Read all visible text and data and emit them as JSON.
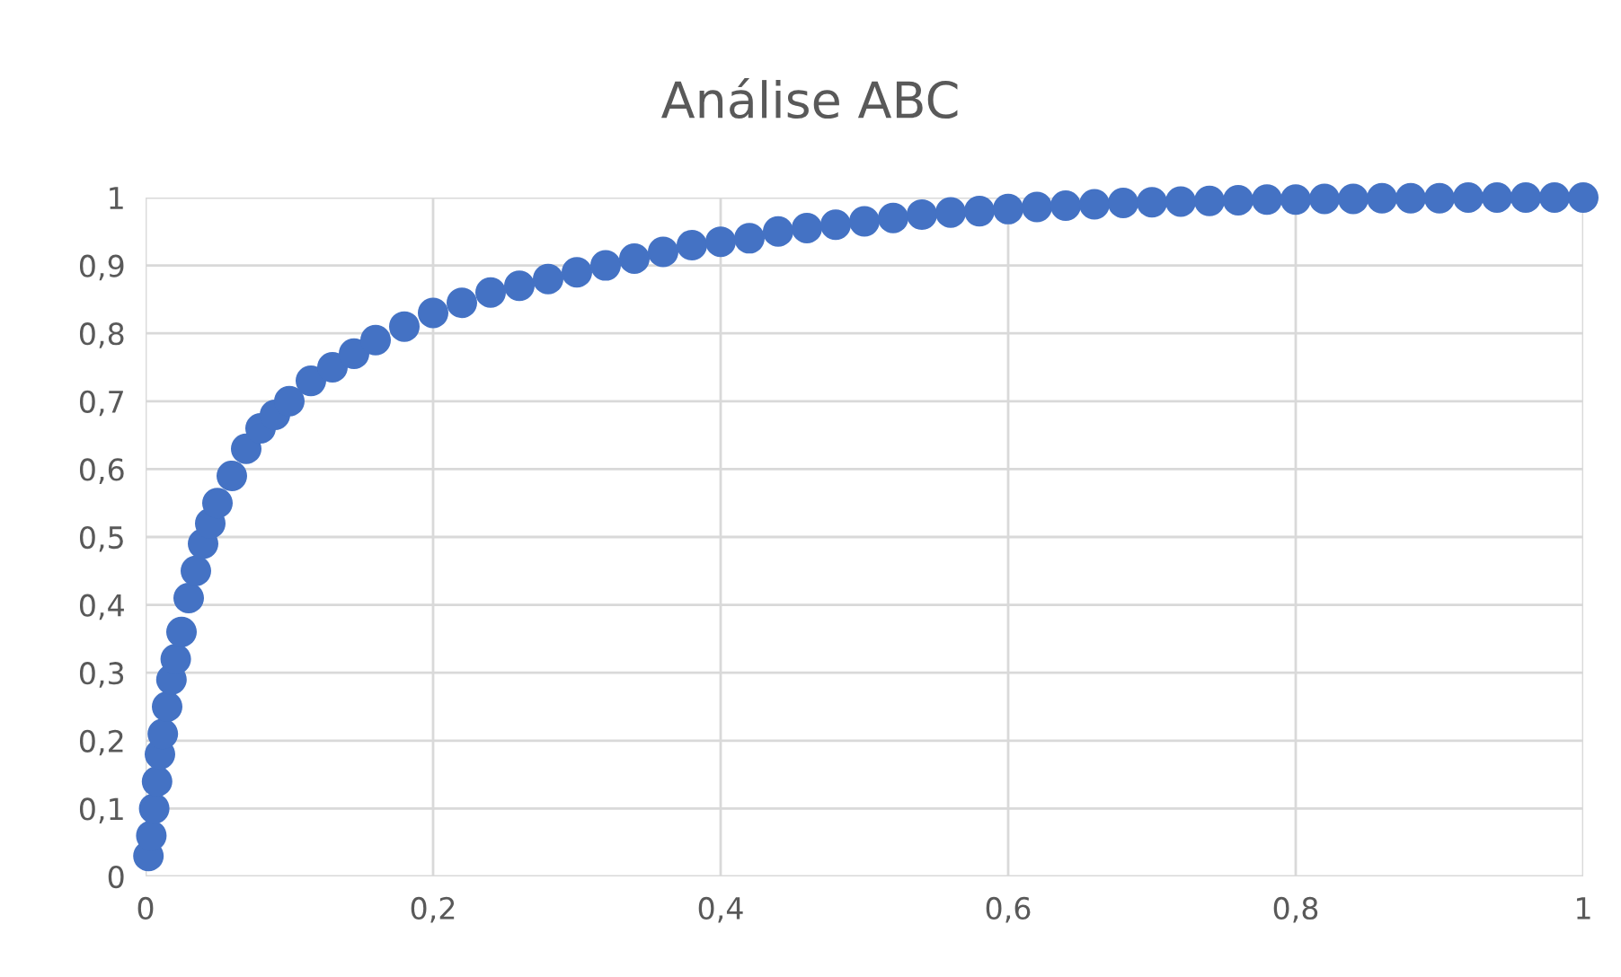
{
  "chart_data": {
    "type": "scatter",
    "title": "Análise ABC",
    "x": [
      0.002,
      0.004,
      0.006,
      0.008,
      0.01,
      0.012,
      0.015,
      0.018,
      0.021,
      0.025,
      0.03,
      0.035,
      0.04,
      0.045,
      0.05,
      0.06,
      0.07,
      0.08,
      0.09,
      0.1,
      0.115,
      0.13,
      0.145,
      0.16,
      0.18,
      0.2,
      0.22,
      0.24,
      0.26,
      0.28,
      0.3,
      0.32,
      0.34,
      0.36,
      0.38,
      0.4,
      0.42,
      0.44,
      0.46,
      0.48,
      0.5,
      0.52,
      0.54,
      0.56,
      0.58,
      0.6,
      0.62,
      0.64,
      0.66,
      0.68,
      0.7,
      0.72,
      0.74,
      0.76,
      0.78,
      0.8,
      0.82,
      0.84,
      0.86,
      0.88,
      0.9,
      0.92,
      0.94,
      0.96,
      0.98,
      1.0
    ],
    "series": [
      {
        "color": "#4472c4",
        "values": [
          0.03,
          0.06,
          0.1,
          0.14,
          0.18,
          0.21,
          0.25,
          0.29,
          0.32,
          0.36,
          0.41,
          0.45,
          0.49,
          0.52,
          0.55,
          0.59,
          0.63,
          0.66,
          0.68,
          0.7,
          0.73,
          0.75,
          0.77,
          0.79,
          0.81,
          0.83,
          0.845,
          0.86,
          0.87,
          0.88,
          0.89,
          0.9,
          0.91,
          0.92,
          0.93,
          0.935,
          0.94,
          0.95,
          0.955,
          0.96,
          0.965,
          0.97,
          0.975,
          0.978,
          0.98,
          0.983,
          0.986,
          0.988,
          0.99,
          0.992,
          0.993,
          0.994,
          0.995,
          0.996,
          0.997,
          0.997,
          0.998,
          0.998,
          0.999,
          0.999,
          0.999,
          1,
          1,
          1,
          1,
          1
        ]
      }
    ],
    "marker": "circle",
    "xlim": [
      0,
      1
    ],
    "xticks": [
      0,
      {
        "value": 0.2,
        "label": "0,2"
      },
      {
        "value": 0.4,
        "label": "0,4"
      },
      {
        "value": 0.6,
        "label": "0,6"
      },
      {
        "value": 0.8,
        "label": "0,8"
      },
      1
    ],
    "ylim": [
      0,
      1
    ],
    "yticks": [
      0,
      {
        "value": 0.1,
        "label": "0,1"
      },
      {
        "value": 0.2,
        "label": "0,2"
      },
      {
        "value": 0.3,
        "label": "0,3"
      },
      {
        "value": 0.4,
        "label": "0,4"
      },
      {
        "value": 0.5,
        "label": "0,5"
      },
      {
        "value": 0.6,
        "label": "0,6"
      },
      {
        "value": 0.7,
        "label": "0,7"
      },
      {
        "value": 0.8,
        "label": "0,8"
      },
      {
        "value": 0.9,
        "label": "0,9"
      },
      1
    ],
    "grid": true
  }
}
